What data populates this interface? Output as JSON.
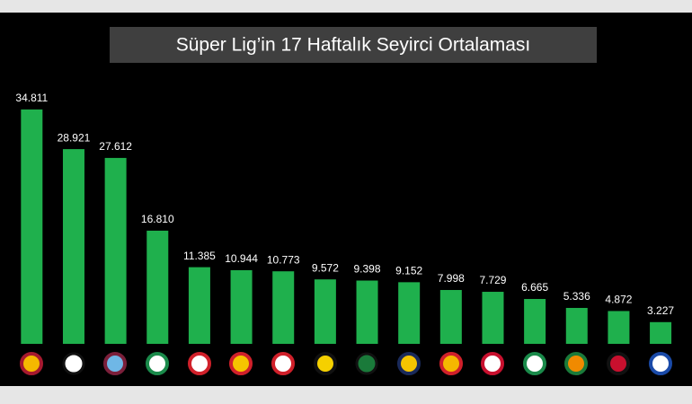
{
  "chart_data": {
    "type": "bar",
    "title": "Süper Lig’in 17 Haftalık Seyirci Ortalaması",
    "categories": [
      null,
      null,
      null,
      null,
      null,
      null,
      null,
      null,
      null,
      null,
      null,
      null,
      null,
      null,
      null,
      null
    ],
    "values": [
      34811,
      28921,
      27612,
      16810,
      11385,
      10944,
      10773,
      9572,
      9398,
      9152,
      7998,
      7729,
      6665,
      5336,
      4872,
      3227
    ],
    "value_labels": [
      "34.811",
      "28.921",
      "27.612",
      "16.810",
      "11.385",
      "10.944",
      "10.773",
      "9.572",
      "9.398",
      "9.152",
      "7.998",
      "7.729",
      "6.665",
      "5.336",
      "4.872",
      "3.227"
    ],
    "color": "#1fb04d",
    "ylim": [
      0,
      40000
    ],
    "grid": false
  }
}
